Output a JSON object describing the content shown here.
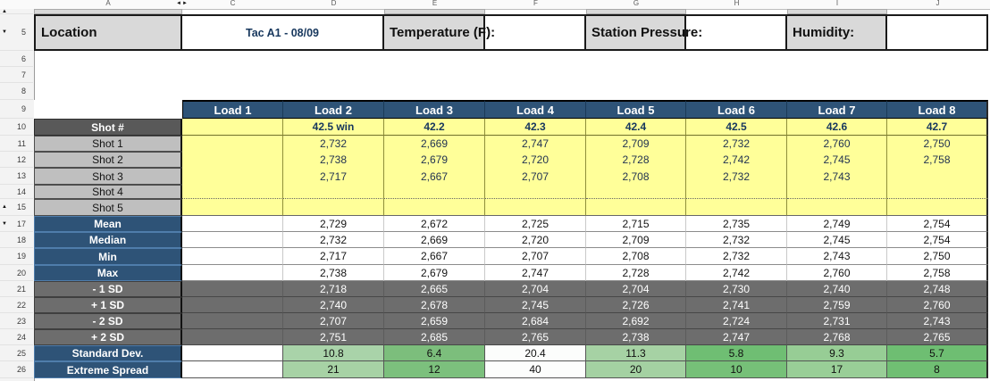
{
  "sheet": {
    "column_letters": [
      "A",
      "C",
      "D",
      "E",
      "F",
      "G",
      "H",
      "I",
      "J"
    ],
    "hidden_col_marker": "◄►",
    "gutter_rows": [
      {
        "n": "",
        "mark": "▲"
      },
      {
        "n": "5",
        "mark": "▼"
      },
      {
        "n": "6"
      },
      {
        "n": "7"
      },
      {
        "n": "8"
      },
      {
        "n": "9"
      },
      {
        "n": "10"
      },
      {
        "n": "11"
      },
      {
        "n": "12"
      },
      {
        "n": "13"
      },
      {
        "n": "14"
      },
      {
        "n": "15",
        "mark": "▲"
      },
      {
        "n": "17",
        "mark": "▼"
      },
      {
        "n": "18"
      },
      {
        "n": "19"
      },
      {
        "n": "20"
      },
      {
        "n": "21"
      },
      {
        "n": "22"
      },
      {
        "n": "23"
      },
      {
        "n": "24"
      },
      {
        "n": "25"
      },
      {
        "n": "26"
      }
    ]
  },
  "info_bar": {
    "location_label": "Location",
    "location_value": "Tac A1  - 08/09",
    "temperature_label": "Temperature (F):",
    "pressure_label": "Station Pressure:",
    "humidity_label": "Humidity:"
  },
  "table": {
    "headers": [
      "Load 1",
      "Load 2",
      "Load 3",
      "Load 4",
      "Load 5",
      "Load 6",
      "Load 7",
      "Load 8"
    ],
    "charge_row": {
      "label": "Shot #",
      "values": [
        "",
        "42.5 win",
        "42.2",
        "42.3",
        "42.4",
        "42.5",
        "42.6",
        "42.7"
      ]
    },
    "shot_rows": [
      {
        "label": "Shot 1",
        "values": [
          "",
          "2,732",
          "2,669",
          "2,747",
          "2,709",
          "2,732",
          "2,760",
          "2,750"
        ]
      },
      {
        "label": "Shot 2",
        "values": [
          "",
          "2,738",
          "2,679",
          "2,720",
          "2,728",
          "2,742",
          "2,745",
          "2,758"
        ]
      },
      {
        "label": "Shot 3",
        "values": [
          "",
          "2,717",
          "2,667",
          "2,707",
          "2,708",
          "2,732",
          "2,743",
          ""
        ]
      },
      {
        "label": "Shot 4",
        "values": [
          "",
          "",
          "",
          "",
          "",
          "",
          "",
          ""
        ]
      },
      {
        "label": "Shot 5",
        "values": [
          "",
          "",
          "",
          "",
          "",
          "",
          "",
          ""
        ]
      }
    ],
    "stat_rows": [
      {
        "label": "Mean",
        "values": [
          "",
          "2,729",
          "2,672",
          "2,725",
          "2,715",
          "2,735",
          "2,749",
          "2,754"
        ]
      },
      {
        "label": "Median",
        "values": [
          "",
          "2,732",
          "2,669",
          "2,720",
          "2,709",
          "2,732",
          "2,745",
          "2,754"
        ]
      },
      {
        "label": "Min",
        "values": [
          "",
          "2,717",
          "2,667",
          "2,707",
          "2,708",
          "2,732",
          "2,743",
          "2,750"
        ]
      },
      {
        "label": "Max",
        "values": [
          "",
          "2,738",
          "2,679",
          "2,747",
          "2,728",
          "2,742",
          "2,760",
          "2,758"
        ]
      }
    ],
    "sd_rows": [
      {
        "label": "- 1 SD",
        "values": [
          "",
          "2,718",
          "2,665",
          "2,704",
          "2,704",
          "2,730",
          "2,740",
          "2,748"
        ]
      },
      {
        "label": "+ 1 SD",
        "values": [
          "",
          "2,740",
          "2,678",
          "2,745",
          "2,726",
          "2,741",
          "2,759",
          "2,760"
        ]
      },
      {
        "label": "- 2 SD",
        "values": [
          "",
          "2,707",
          "2,659",
          "2,684",
          "2,692",
          "2,724",
          "2,731",
          "2,743"
        ]
      },
      {
        "label": "+ 2 SD",
        "values": [
          "",
          "2,751",
          "2,685",
          "2,765",
          "2,738",
          "2,747",
          "2,768",
          "2,765"
        ]
      }
    ],
    "result_rows": [
      {
        "label": "Standard Dev.",
        "values": [
          "",
          "10.8",
          "6.4",
          "20.4",
          "11.3",
          "5.8",
          "9.3",
          "5.7"
        ],
        "cell_colors": [
          "#ffffff",
          "#a9d3a9",
          "#7cbe7c",
          "#fcfdfc",
          "#a6d2a4",
          "#6fbe73",
          "#97cd95",
          "#6ebe72"
        ]
      },
      {
        "label": "Extreme Spread",
        "values": [
          "",
          "21",
          "12",
          "40",
          "20",
          "10",
          "17",
          "8"
        ],
        "cell_colors": [
          "#ffffff",
          "#a7d2a5",
          "#7cc07d",
          "#fcfdfc",
          "#a4d1a2",
          "#76c078",
          "#99ce97",
          "#70bf73"
        ]
      }
    ]
  },
  "colors": {
    "header_blue": "#2e5377",
    "label_dark_gray": "#595959",
    "label_light_gray": "#bfbfbf",
    "band_gray": "#6d6d6d",
    "cell_yellow": "#ffff99",
    "navy_text": "#17375d",
    "info_gray": "#d9d9d9"
  }
}
